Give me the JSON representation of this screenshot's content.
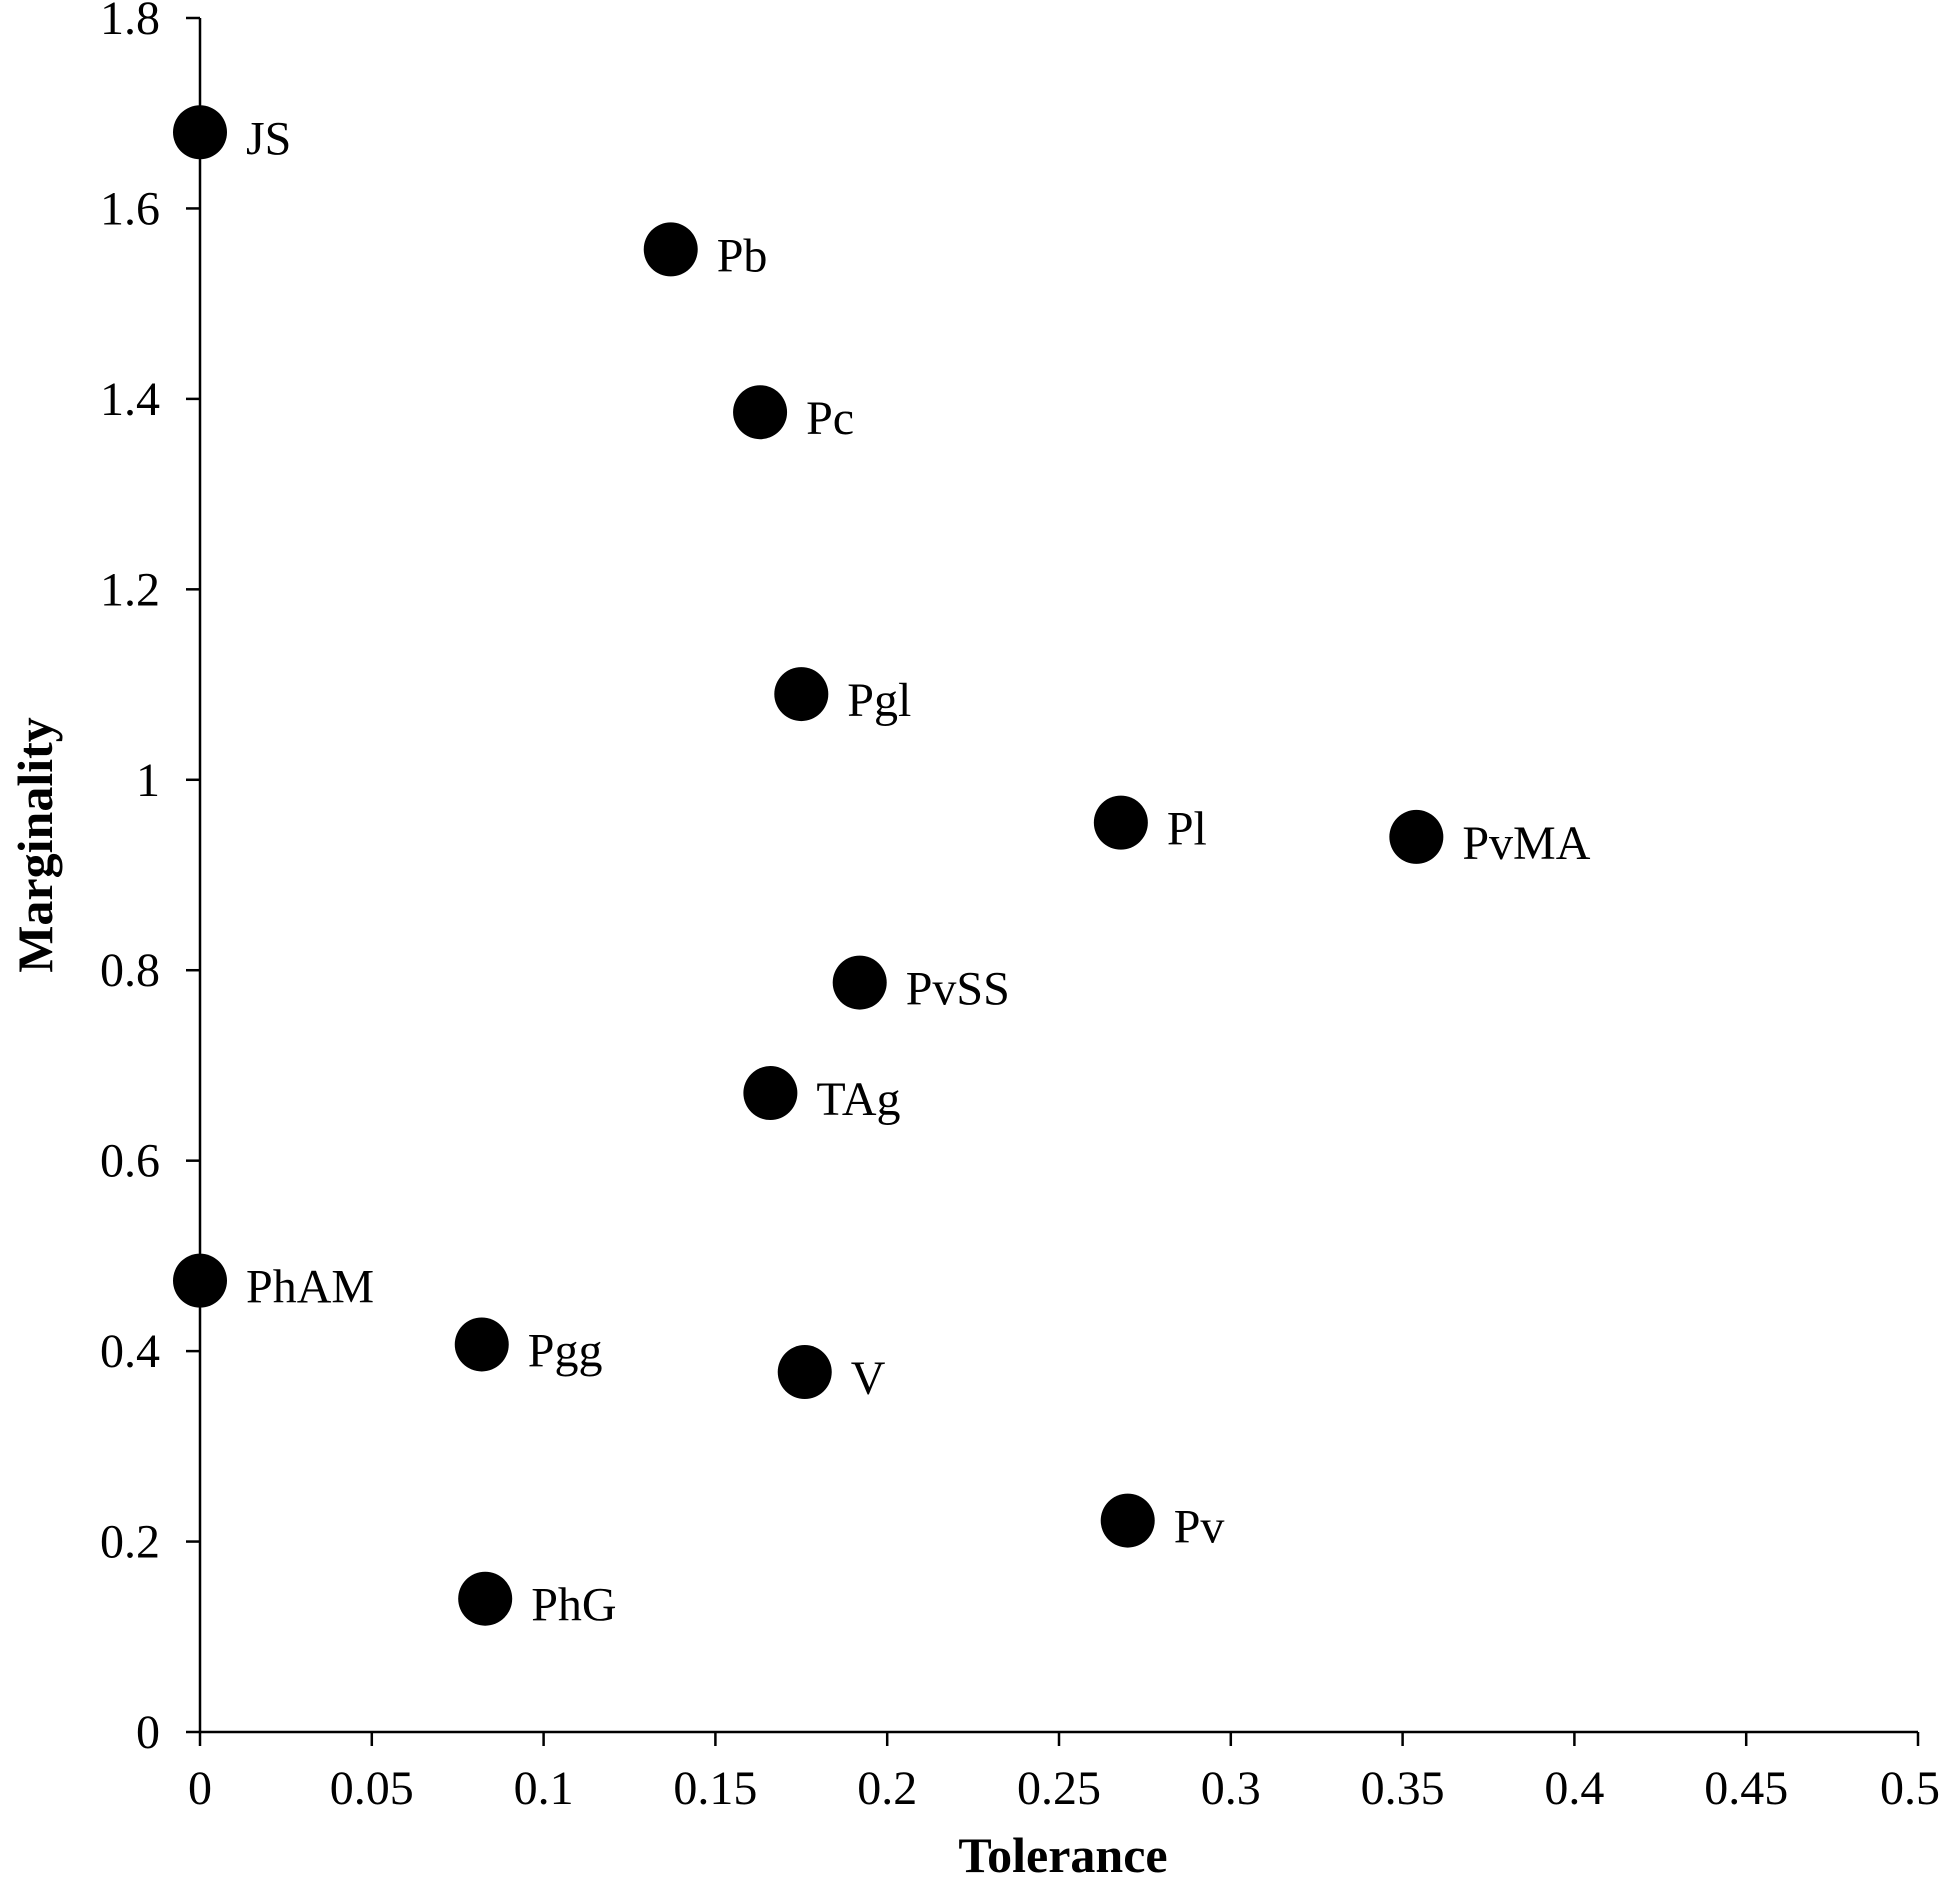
{
  "chart_data": {
    "type": "scatter",
    "title": "",
    "xlabel": "Tolerance",
    "ylabel": "Marginality",
    "xlim": [
      0,
      0.5
    ],
    "ylim": [
      0,
      1.8
    ],
    "xticks": [
      "0",
      "0.05",
      "0.1",
      "0.15",
      "0.2",
      "0.25",
      "0.3",
      "0.35",
      "0.4",
      "0.45",
      "0.5"
    ],
    "yticks": [
      "0",
      "0.2",
      "0.4",
      "0.6",
      "0.8",
      "1",
      "1.2",
      "1.4",
      "1.6",
      "1.8"
    ],
    "grid": false,
    "legend": "none",
    "marker_color": "#000000",
    "points": [
      {
        "label": "JS",
        "x": 0.0,
        "y": 1.68
      },
      {
        "label": "Pb",
        "x": 0.137,
        "y": 1.557
      },
      {
        "label": "Pc",
        "x": 0.163,
        "y": 1.386
      },
      {
        "label": "Pgl",
        "x": 0.175,
        "y": 1.09
      },
      {
        "label": "Pl",
        "x": 0.268,
        "y": 0.955
      },
      {
        "label": "PvMA",
        "x": 0.354,
        "y": 0.94
      },
      {
        "label": "PvSS",
        "x": 0.192,
        "y": 0.787
      },
      {
        "label": "TAg",
        "x": 0.166,
        "y": 0.671
      },
      {
        "label": "PhAM",
        "x": 0.0,
        "y": 0.474
      },
      {
        "label": "Pgg",
        "x": 0.082,
        "y": 0.407
      },
      {
        "label": "V",
        "x": 0.176,
        "y": 0.378
      },
      {
        "label": "Pv",
        "x": 0.27,
        "y": 0.222
      },
      {
        "label": "PhG",
        "x": 0.083,
        "y": 0.14
      }
    ]
  }
}
